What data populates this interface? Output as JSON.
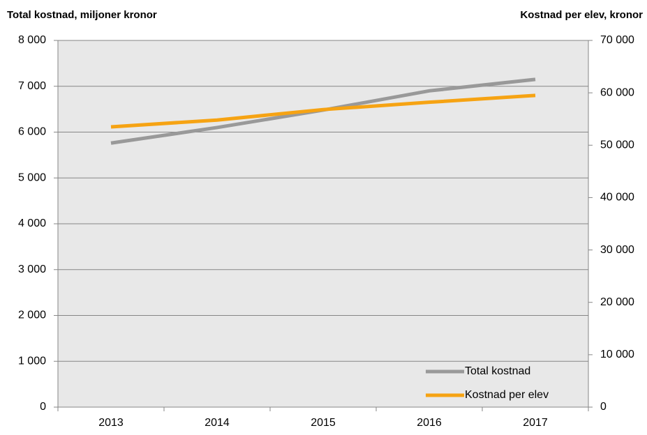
{
  "chart_data": {
    "type": "line",
    "ylabel": "Total kostnad, miljoner kronor",
    "y2label": "Kostnad per elev, kronor",
    "categories": [
      "2013",
      "2014",
      "2015",
      "2016",
      "2017"
    ],
    "series": [
      {
        "name": "Total kostnad",
        "color": "#999999",
        "values": [
          5760,
          6100,
          6480,
          6900,
          7150
        ]
      },
      {
        "name": "Kostnad per elev",
        "color": "#f6a313",
        "axis": "y2",
        "values": [
          53500,
          54800,
          56800,
          58200,
          59500
        ]
      }
    ],
    "ylim": [
      0,
      8000
    ],
    "yticks": [
      0,
      {
        "value": 1000,
        "label": "1 000"
      },
      {
        "value": 2000,
        "label": "2 000"
      },
      {
        "value": 3000,
        "label": "3 000"
      },
      {
        "value": 4000,
        "label": "4 000"
      },
      {
        "value": 5000,
        "label": "5 000"
      },
      {
        "value": 6000,
        "label": "6 000"
      },
      {
        "value": 7000,
        "label": "7 000"
      },
      {
        "value": 8000,
        "label": "8 000"
      }
    ],
    "y2lim": [
      0,
      70000
    ],
    "y2ticks": [
      0,
      {
        "value": 10000,
        "label": "10 000"
      },
      {
        "value": 20000,
        "label": "20 000"
      },
      {
        "value": 30000,
        "label": "30 000"
      },
      {
        "value": 40000,
        "label": "40 000"
      },
      {
        "value": 50000,
        "label": "50 000"
      },
      {
        "value": 60000,
        "label": "60 000"
      },
      {
        "value": 70000,
        "label": "70 000"
      }
    ],
    "grid": true,
    "legend": "lower right"
  }
}
